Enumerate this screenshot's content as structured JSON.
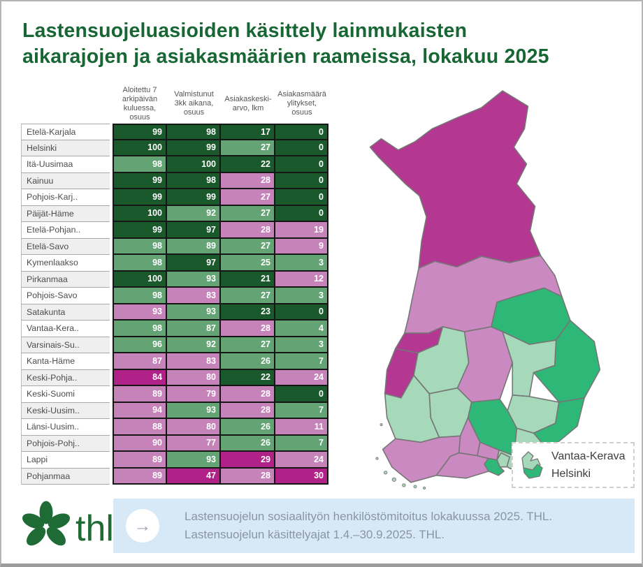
{
  "title": {
    "line1": "Lastensuojeluasioiden käsittely lainmukaisten",
    "line2": "aikarajojen ja asiakasmäärien raameissa, lokakuu 2025"
  },
  "chart_data": [
    {
      "type": "table",
      "title": "Lastensuojeluasioiden käsittely lainmukaisten aikarajojen ja asiakasmäärien raameissa, lokakuu 2025",
      "columns": [
        "Aloitettu 7 arkipäivän kuluessa, osuus",
        "Valmistunut 3kk aikana, osuus",
        "Asiakaskeski-arvo, lkm",
        "Asiakasmäärä ylitykset, osuus"
      ],
      "palette": {
        "dg": "#19592b",
        "lg": "#63a374",
        "pk": "#c583b9",
        "dm": "#b02288"
      },
      "rows": [
        {
          "label": "Etelä-Karjala",
          "values": [
            99,
            98,
            17,
            0
          ],
          "colors": [
            "dg",
            "dg",
            "dg",
            "dg"
          ]
        },
        {
          "label": "Helsinki",
          "values": [
            100,
            99,
            27,
            0
          ],
          "colors": [
            "dg",
            "dg",
            "lg",
            "dg"
          ]
        },
        {
          "label": "Itä-Uusimaa",
          "values": [
            98,
            100,
            22,
            0
          ],
          "colors": [
            "lg",
            "dg",
            "dg",
            "dg"
          ]
        },
        {
          "label": "Kainuu",
          "values": [
            99,
            98,
            28,
            0
          ],
          "colors": [
            "dg",
            "dg",
            "pk",
            "dg"
          ]
        },
        {
          "label": "Pohjois-Karj..",
          "values": [
            99,
            99,
            27,
            0
          ],
          "colors": [
            "dg",
            "dg",
            "pk",
            "dg"
          ]
        },
        {
          "label": "Päijät-Häme",
          "values": [
            100,
            92,
            27,
            0
          ],
          "colors": [
            "dg",
            "lg",
            "lg",
            "dg"
          ]
        },
        {
          "label": "Etelä-Pohjan..",
          "values": [
            99,
            97,
            28,
            19
          ],
          "colors": [
            "dg",
            "dg",
            "pk",
            "pk"
          ]
        },
        {
          "label": "Etelä-Savo",
          "values": [
            98,
            89,
            27,
            9
          ],
          "colors": [
            "lg",
            "lg",
            "lg",
            "pk"
          ]
        },
        {
          "label": "Kymenlaakso",
          "values": [
            98,
            97,
            25,
            3
          ],
          "colors": [
            "lg",
            "dg",
            "lg",
            "lg"
          ]
        },
        {
          "label": "Pirkanmaa",
          "values": [
            100,
            93,
            21,
            12
          ],
          "colors": [
            "dg",
            "lg",
            "dg",
            "pk"
          ]
        },
        {
          "label": "Pohjois-Savo",
          "values": [
            98,
            83,
            27,
            3
          ],
          "colors": [
            "lg",
            "pk",
            "lg",
            "lg"
          ]
        },
        {
          "label": "Satakunta",
          "values": [
            93,
            93,
            23,
            0
          ],
          "colors": [
            "pk",
            "lg",
            "dg",
            "dg"
          ]
        },
        {
          "label": "Vantaa-Kera..",
          "values": [
            98,
            87,
            28,
            4
          ],
          "colors": [
            "lg",
            "lg",
            "pk",
            "lg"
          ]
        },
        {
          "label": "Varsinais-Su..",
          "values": [
            96,
            92,
            27,
            3
          ],
          "colors": [
            "lg",
            "lg",
            "lg",
            "lg"
          ]
        },
        {
          "label": "Kanta-Häme",
          "values": [
            87,
            83,
            26,
            7
          ],
          "colors": [
            "pk",
            "pk",
            "lg",
            "lg"
          ]
        },
        {
          "label": "Keski-Pohja..",
          "values": [
            84,
            80,
            22,
            24
          ],
          "colors": [
            "dm",
            "pk",
            "dg",
            "pk"
          ]
        },
        {
          "label": "Keski-Suomi",
          "values": [
            89,
            79,
            28,
            0
          ],
          "colors": [
            "pk",
            "pk",
            "pk",
            "dg"
          ]
        },
        {
          "label": "Keski-Uusim..",
          "values": [
            94,
            93,
            28,
            7
          ],
          "colors": [
            "pk",
            "lg",
            "pk",
            "lg"
          ]
        },
        {
          "label": "Länsi-Uusim..",
          "values": [
            88,
            80,
            26,
            11
          ],
          "colors": [
            "pk",
            "pk",
            "lg",
            "pk"
          ]
        },
        {
          "label": "Pohjois-Pohj..",
          "values": [
            90,
            77,
            26,
            7
          ],
          "colors": [
            "pk",
            "pk",
            "lg",
            "lg"
          ]
        },
        {
          "label": "Lappi",
          "values": [
            89,
            93,
            29,
            24
          ],
          "colors": [
            "pk",
            "lg",
            "dm",
            "pk"
          ]
        },
        {
          "label": "Pohjanmaa",
          "values": [
            89,
            47,
            28,
            30
          ],
          "colors": [
            "pk",
            "dm",
            "pk",
            "dm"
          ]
        }
      ]
    },
    {
      "type": "heatmap",
      "subtype": "choropleth-map-finland",
      "palette": {
        "dm": "#b43791",
        "pk": "#cb89c2",
        "lg": "#a6d8ba",
        "mg": "#2eb878"
      },
      "stroke": "#767676",
      "regions": {
        "lappi": "dm",
        "pohjois-pohjanmaa": "pk",
        "kainuu": "mg",
        "keski-pohjanmaa": "dm",
        "pohjanmaa": "dm",
        "etela-pohjanmaa": "lg",
        "keski-suomi": "pk",
        "pohjois-savo": "lg",
        "pohjois-karjala": "mg",
        "etela-savo": "lg",
        "etela-karjala": "mg",
        "kymenlaakso": "lg",
        "paijat-hame": "mg",
        "pirkanmaa": "lg",
        "kanta-hame": "pk",
        "satakunta": "lg",
        "varsinais-suomi": "pk",
        "lansi-uusimaa": "pk",
        "ita-uusimaa": "lg",
        "keski-uusimaa": "pk",
        "vantaa-kerava": "lg",
        "helsinki": "mg"
      }
    }
  ],
  "map_legend": {
    "line1": "Vantaa-Kerava",
    "line2": "Helsinki"
  },
  "footer": {
    "logo_text": "thl",
    "arrow_glyph": "→",
    "source_line1": "Lastensuojelun sosiaalityön henkilöstömitoitus lokakuussa 2025. THL.",
    "source_line2": "Lastensuojelun käsittelyajat 1.4.–30.9.2025. THL."
  }
}
